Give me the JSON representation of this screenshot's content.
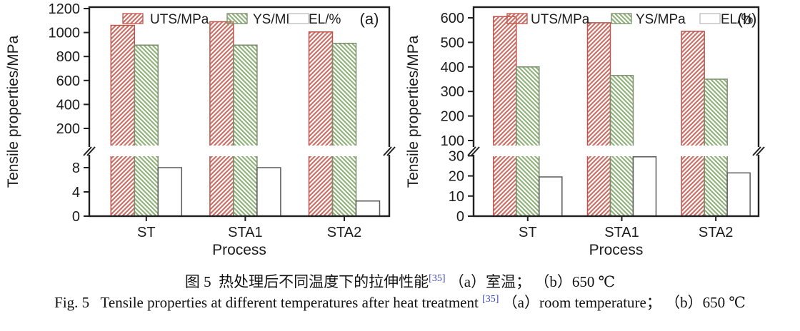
{
  "figure": {
    "caption_cn": {
      "prefix": "图 5  热处理后不同温度下的拉伸性能",
      "ref": "[35]",
      "suffix": " （a）室温； （b）650 ℃"
    },
    "caption_en": {
      "prefix": "Fig. 5   Tensile properties at different temperatures after heat treatment ",
      "ref": "[35]",
      "suffix": " （a）room temperature； （b）650 ℃"
    }
  },
  "style": {
    "axis_color": "#1f1f1f",
    "text_color": "#1c1c1c",
    "ref_color": "#3946c0",
    "uts_line": "#cd7168",
    "uts_border": "#bc544c",
    "ys_line": "#92b27d",
    "ys_border": "#7b8d6c",
    "el_fill": "#ffffff",
    "el_border": "#5a5a5a",
    "el_legend_border": "#bcbcbc"
  },
  "chart_data": [
    {
      "type": "bar",
      "panel_label": "(a)",
      "ylabel": "Tensile properties/MPa",
      "xlabel": "Process",
      "categories": [
        "ST",
        "STA1",
        "STA2"
      ],
      "series": [
        {
          "name": "UTS/MPa",
          "hatch": "/",
          "axis": "upper",
          "values": [
            1060,
            1090,
            1005
          ]
        },
        {
          "name": "YS/MPa",
          "hatch": "\\",
          "axis": "upper",
          "values": [
            895,
            895,
            910
          ]
        },
        {
          "name": "EL/%",
          "hatch": "none",
          "axis": "lower",
          "values": [
            8,
            8,
            2.5
          ]
        }
      ],
      "upper_axis": {
        "ticks": [
          1200,
          1000,
          800,
          600,
          400,
          200
        ],
        "max": 1200,
        "min": 200
      },
      "lower_axis": {
        "ticks": [
          8,
          4,
          0
        ]
      },
      "broken_axis": true,
      "legend_position": "top-inside",
      "grid": false
    },
    {
      "type": "bar",
      "panel_label": "(b)",
      "ylabel": "Tensile properties/MPa",
      "xlabel": "Process",
      "categories": [
        "ST",
        "STA1",
        "STA2"
      ],
      "series": [
        {
          "name": "UTS/MPa",
          "hatch": "/",
          "axis": "upper",
          "values": [
            605,
            580,
            545
          ]
        },
        {
          "name": "YS/MPa",
          "hatch": "\\",
          "axis": "upper",
          "values": [
            400,
            365,
            350
          ]
        },
        {
          "name": "EL/%",
          "hatch": "none",
          "axis": "lower",
          "values": [
            19.5,
            29.5,
            21.5
          ]
        }
      ],
      "upper_axis": {
        "ticks": [
          600,
          500,
          400,
          300,
          200,
          100
        ],
        "max": 600,
        "min": 100
      },
      "lower_axis": {
        "ticks": [
          30,
          20,
          10,
          0
        ]
      },
      "broken_axis": true,
      "legend_position": "top-inside",
      "grid": false
    }
  ]
}
